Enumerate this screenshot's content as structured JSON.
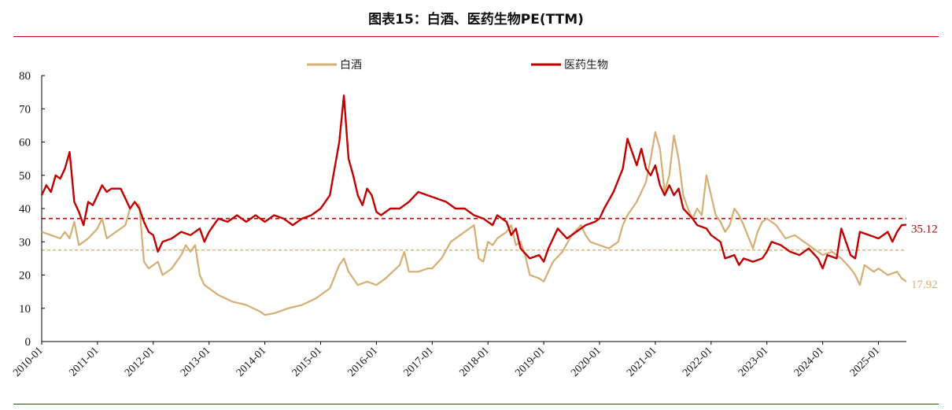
{
  "page": {
    "title": "图表15：白酒、医药生物PE(TTM)"
  },
  "colors": {
    "baijiu": "#D4AE72",
    "pharma": "#C00000",
    "rule": "#C00000",
    "axis": "#000000"
  },
  "chart_data": {
    "type": "line",
    "title": "图表15：白酒、医药生物PE(TTM)",
    "xlabel": "",
    "ylabel": "",
    "ylim": [
      0,
      80
    ],
    "yticks": [
      "0",
      "10",
      "20",
      "30",
      "40",
      "50",
      "60",
      "70",
      "80"
    ],
    "xlim": [
      "2010-01",
      "2025-07"
    ],
    "xticks": [
      "2010-01",
      "2011-01",
      "2012-01",
      "2013-01",
      "2014-01",
      "2015-01",
      "2016-01",
      "2017-01",
      "2018-01",
      "2019-01",
      "2020-01",
      "2021-01",
      "2022-01",
      "2023-01",
      "2024-01",
      "2025-01"
    ],
    "grid": false,
    "legend": "top-center",
    "series": [
      {
        "name": "白酒",
        "key": "baijiu",
        "mean_line": 27.5,
        "end_label": "17.92",
        "points": [
          [
            "2010-01",
            33
          ],
          [
            "2010-03",
            32
          ],
          [
            "2010-05",
            31
          ],
          [
            "2010-06",
            33
          ],
          [
            "2010-07",
            31
          ],
          [
            "2010-08",
            36
          ],
          [
            "2010-09",
            29
          ],
          [
            "2010-10",
            30
          ],
          [
            "2010-11",
            31
          ],
          [
            "2011-01",
            34
          ],
          [
            "2011-02",
            37
          ],
          [
            "2011-03",
            31
          ],
          [
            "2011-05",
            33
          ],
          [
            "2011-07",
            35
          ],
          [
            "2011-08",
            40
          ],
          [
            "2011-09",
            42
          ],
          [
            "2011-10",
            41
          ],
          [
            "2011-11",
            24
          ],
          [
            "2011-12",
            22
          ],
          [
            "2012-02",
            24
          ],
          [
            "2012-03",
            20
          ],
          [
            "2012-05",
            22
          ],
          [
            "2012-06",
            24
          ],
          [
            "2012-07",
            26
          ],
          [
            "2012-08",
            29
          ],
          [
            "2012-09",
            27
          ],
          [
            "2012-10",
            29
          ],
          [
            "2012-11",
            20
          ],
          [
            "2012-12",
            17
          ],
          [
            "2013-01",
            16
          ],
          [
            "2013-03",
            14
          ],
          [
            "2013-06",
            12
          ],
          [
            "2013-09",
            11
          ],
          [
            "2013-12",
            9
          ],
          [
            "2014-01",
            8
          ],
          [
            "2014-03",
            8.5
          ],
          [
            "2014-06",
            10
          ],
          [
            "2014-09",
            11
          ],
          [
            "2014-12",
            13
          ],
          [
            "2015-01",
            14
          ],
          [
            "2015-03",
            16
          ],
          [
            "2015-05",
            23
          ],
          [
            "2015-06",
            25
          ],
          [
            "2015-07",
            21
          ],
          [
            "2015-09",
            17
          ],
          [
            "2015-11",
            18
          ],
          [
            "2016-01",
            17
          ],
          [
            "2016-03",
            19
          ],
          [
            "2016-06",
            23
          ],
          [
            "2016-07",
            27
          ],
          [
            "2016-08",
            21
          ],
          [
            "2016-10",
            21
          ],
          [
            "2016-12",
            22
          ],
          [
            "2017-01",
            22
          ],
          [
            "2017-03",
            25
          ],
          [
            "2017-05",
            30
          ],
          [
            "2017-07",
            32
          ],
          [
            "2017-09",
            34
          ],
          [
            "2017-10",
            35
          ],
          [
            "2017-11",
            25
          ],
          [
            "2017-12",
            24
          ],
          [
            "2018-01",
            30
          ],
          [
            "2018-02",
            29
          ],
          [
            "2018-03",
            31
          ],
          [
            "2018-05",
            33
          ],
          [
            "2018-06",
            35
          ],
          [
            "2018-07",
            29
          ],
          [
            "2018-08",
            30
          ],
          [
            "2018-09",
            26
          ],
          [
            "2018-10",
            20
          ],
          [
            "2018-12",
            19
          ],
          [
            "2019-01",
            18
          ],
          [
            "2019-03",
            24
          ],
          [
            "2019-05",
            27
          ],
          [
            "2019-07",
            32
          ],
          [
            "2019-09",
            35
          ],
          [
            "2019-10",
            32
          ],
          [
            "2019-11",
            30
          ],
          [
            "2020-01",
            29
          ],
          [
            "2020-03",
            28
          ],
          [
            "2020-05",
            30
          ],
          [
            "2020-06",
            35
          ],
          [
            "2020-07",
            38
          ],
          [
            "2020-08",
            40
          ],
          [
            "2020-09",
            42
          ],
          [
            "2020-10",
            45
          ],
          [
            "2020-11",
            48
          ],
          [
            "2020-12",
            55
          ],
          [
            "2021-01",
            63
          ],
          [
            "2021-02",
            58
          ],
          [
            "2021-03",
            45
          ],
          [
            "2021-04",
            50
          ],
          [
            "2021-05",
            62
          ],
          [
            "2021-06",
            55
          ],
          [
            "2021-07",
            44
          ],
          [
            "2021-08",
            40
          ],
          [
            "2021-09",
            37
          ],
          [
            "2021-10",
            40
          ],
          [
            "2021-11",
            38
          ],
          [
            "2021-12",
            50
          ],
          [
            "2022-01",
            44
          ],
          [
            "2022-02",
            38
          ],
          [
            "2022-03",
            36
          ],
          [
            "2022-04",
            33
          ],
          [
            "2022-05",
            35
          ],
          [
            "2022-06",
            40
          ],
          [
            "2022-07",
            38
          ],
          [
            "2022-08",
            35
          ],
          [
            "2022-10",
            28
          ],
          [
            "2022-11",
            33
          ],
          [
            "2022-12",
            36
          ],
          [
            "2023-01",
            37
          ],
          [
            "2023-03",
            35
          ],
          [
            "2023-05",
            31
          ],
          [
            "2023-07",
            32
          ],
          [
            "2023-09",
            30
          ],
          [
            "2023-11",
            28
          ],
          [
            "2024-01",
            26
          ],
          [
            "2024-03",
            27
          ],
          [
            "2024-05",
            25
          ],
          [
            "2024-07",
            22
          ],
          [
            "2024-08",
            20
          ],
          [
            "2024-09",
            17
          ],
          [
            "2024-10",
            23
          ],
          [
            "2024-12",
            21
          ],
          [
            "2025-01",
            22
          ],
          [
            "2025-03",
            20
          ],
          [
            "2025-05",
            21
          ],
          [
            "2025-06",
            19
          ],
          [
            "2025-07",
            18
          ]
        ]
      },
      {
        "name": "医药生物",
        "key": "pharma",
        "mean_line": 37,
        "end_label": "35.12",
        "points": [
          [
            "2010-01",
            44
          ],
          [
            "2010-02",
            47
          ],
          [
            "2010-03",
            45
          ],
          [
            "2010-04",
            50
          ],
          [
            "2010-05",
            49
          ],
          [
            "2010-06",
            52
          ],
          [
            "2010-07",
            57
          ],
          [
            "2010-08",
            42
          ],
          [
            "2010-09",
            39
          ],
          [
            "2010-10",
            35
          ],
          [
            "2010-11",
            42
          ],
          [
            "2010-12",
            41
          ],
          [
            "2011-01",
            44
          ],
          [
            "2011-02",
            47
          ],
          [
            "2011-03",
            45
          ],
          [
            "2011-04",
            46
          ],
          [
            "2011-06",
            46
          ],
          [
            "2011-07",
            43
          ],
          [
            "2011-08",
            40
          ],
          [
            "2011-09",
            42
          ],
          [
            "2011-10",
            40
          ],
          [
            "2011-11",
            36
          ],
          [
            "2011-12",
            33
          ],
          [
            "2012-01",
            32
          ],
          [
            "2012-02",
            27
          ],
          [
            "2012-03",
            30
          ],
          [
            "2012-05",
            31
          ],
          [
            "2012-07",
            33
          ],
          [
            "2012-09",
            32
          ],
          [
            "2012-11",
            34
          ],
          [
            "2012-12",
            30
          ],
          [
            "2013-01",
            33
          ],
          [
            "2013-03",
            37
          ],
          [
            "2013-05",
            36
          ],
          [
            "2013-07",
            38
          ],
          [
            "2013-09",
            36
          ],
          [
            "2013-11",
            38
          ],
          [
            "2014-01",
            36
          ],
          [
            "2014-03",
            38
          ],
          [
            "2014-05",
            37
          ],
          [
            "2014-07",
            35
          ],
          [
            "2014-09",
            37
          ],
          [
            "2014-11",
            38
          ],
          [
            "2015-01",
            40
          ],
          [
            "2015-03",
            44
          ],
          [
            "2015-04",
            52
          ],
          [
            "2015-05",
            60
          ],
          [
            "2015-06",
            74
          ],
          [
            "2015-07",
            55
          ],
          [
            "2015-08",
            50
          ],
          [
            "2015-09",
            44
          ],
          [
            "2015-10",
            41
          ],
          [
            "2015-11",
            46
          ],
          [
            "2015-12",
            44
          ],
          [
            "2016-01",
            39
          ],
          [
            "2016-02",
            38
          ],
          [
            "2016-04",
            40
          ],
          [
            "2016-06",
            40
          ],
          [
            "2016-08",
            42
          ],
          [
            "2016-10",
            45
          ],
          [
            "2016-12",
            44
          ],
          [
            "2017-02",
            43
          ],
          [
            "2017-04",
            42
          ],
          [
            "2017-06",
            40
          ],
          [
            "2017-08",
            40
          ],
          [
            "2017-10",
            38
          ],
          [
            "2017-12",
            37
          ],
          [
            "2018-02",
            35
          ],
          [
            "2018-03",
            38
          ],
          [
            "2018-05",
            36
          ],
          [
            "2018-06",
            32
          ],
          [
            "2018-07",
            34
          ],
          [
            "2018-08",
            28
          ],
          [
            "2018-10",
            25
          ],
          [
            "2018-12",
            26
          ],
          [
            "2019-01",
            24
          ],
          [
            "2019-02",
            28
          ],
          [
            "2019-04",
            34
          ],
          [
            "2019-06",
            31
          ],
          [
            "2019-08",
            33
          ],
          [
            "2019-10",
            35
          ],
          [
            "2019-12",
            36
          ],
          [
            "2020-01",
            37
          ],
          [
            "2020-02",
            40
          ],
          [
            "2020-04",
            45
          ],
          [
            "2020-06",
            52
          ],
          [
            "2020-07",
            61
          ],
          [
            "2020-08",
            57
          ],
          [
            "2020-09",
            53
          ],
          [
            "2020-10",
            58
          ],
          [
            "2020-11",
            52
          ],
          [
            "2020-12",
            50
          ],
          [
            "2021-01",
            53
          ],
          [
            "2021-02",
            47
          ],
          [
            "2021-03",
            44
          ],
          [
            "2021-04",
            47
          ],
          [
            "2021-05",
            44
          ],
          [
            "2021-06",
            46
          ],
          [
            "2021-07",
            40
          ],
          [
            "2021-09",
            37
          ],
          [
            "2021-10",
            35
          ],
          [
            "2021-12",
            34
          ],
          [
            "2022-01",
            32
          ],
          [
            "2022-03",
            30
          ],
          [
            "2022-04",
            25
          ],
          [
            "2022-06",
            26
          ],
          [
            "2022-07",
            23
          ],
          [
            "2022-08",
            25
          ],
          [
            "2022-10",
            24
          ],
          [
            "2022-12",
            25
          ],
          [
            "2023-01",
            27
          ],
          [
            "2023-02",
            30
          ],
          [
            "2023-04",
            29
          ],
          [
            "2023-06",
            27
          ],
          [
            "2023-08",
            26
          ],
          [
            "2023-10",
            28
          ],
          [
            "2023-12",
            25
          ],
          [
            "2024-01",
            22
          ],
          [
            "2024-02",
            26
          ],
          [
            "2024-04",
            25
          ],
          [
            "2024-05",
            34
          ],
          [
            "2024-06",
            30
          ],
          [
            "2024-07",
            26
          ],
          [
            "2024-08",
            25
          ],
          [
            "2024-09",
            33
          ],
          [
            "2024-11",
            32
          ],
          [
            "2025-01",
            31
          ],
          [
            "2025-03",
            33
          ],
          [
            "2025-04",
            30
          ],
          [
            "2025-05",
            33
          ],
          [
            "2025-06",
            35
          ],
          [
            "2025-07",
            35.12
          ]
        ]
      }
    ]
  }
}
